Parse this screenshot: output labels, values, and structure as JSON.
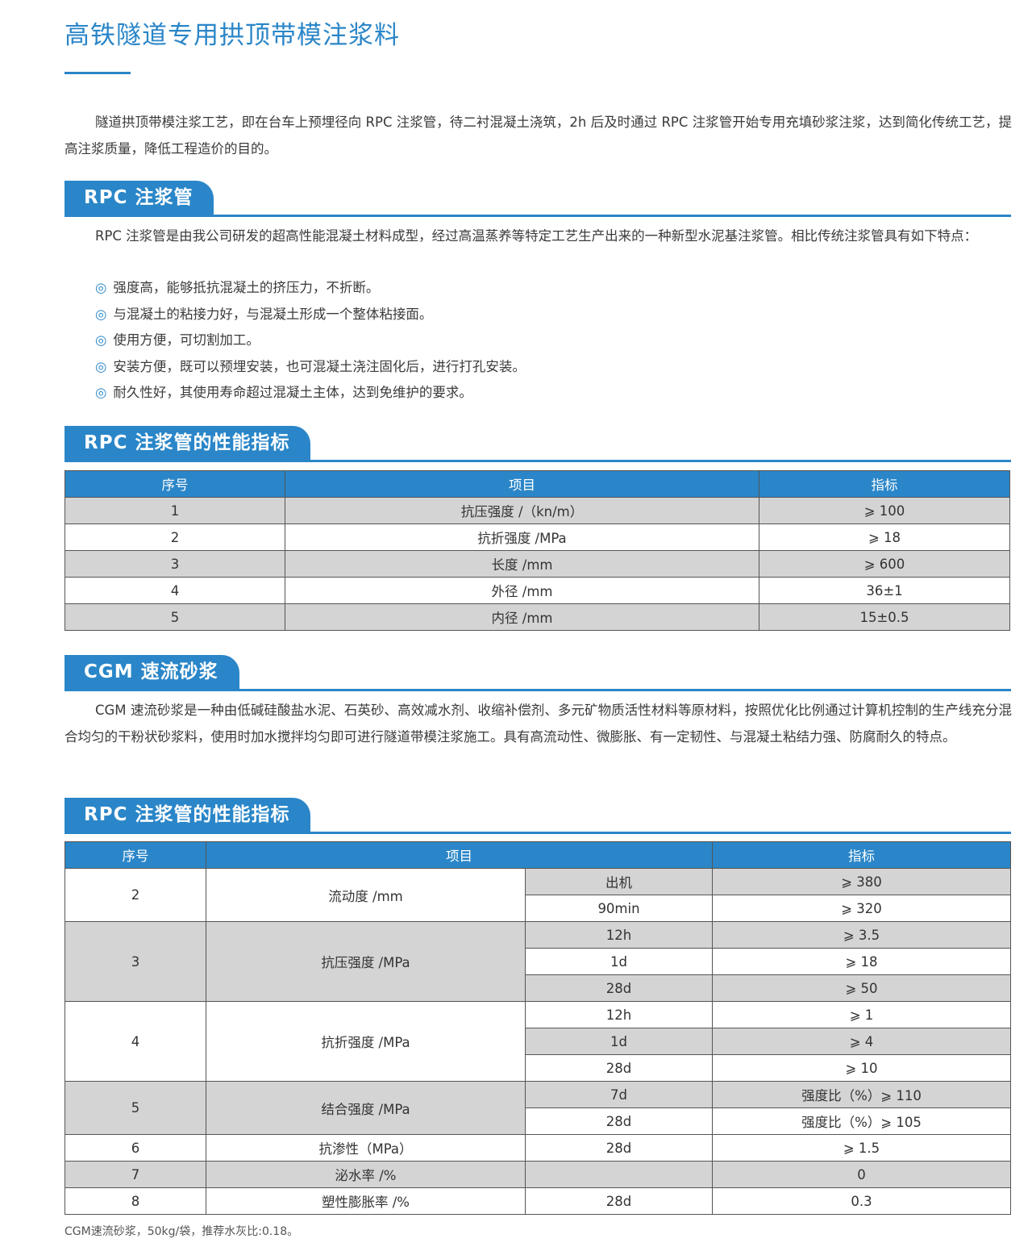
{
  "title": "高铁隧道专用拱顶带模注浆料",
  "intro": "隧道拱顶带模注浆工艺，即在台车上预埋径向 RPC 注浆管，待二衬混凝土浇筑，2h 后及时通过 RPC 注浆管开始专用充填砂浆注浆，达到简化传统工艺，提高注浆质量，降低工程造价的目的。",
  "rpc": {
    "heading": "RPC 注浆管",
    "desc": "RPC 注浆管是由我公司研发的超高性能混凝土材料成型，经过高温蒸养等特定工艺生产出来的一种新型水泥基注浆管。相比传统注浆管具有如下特点：",
    "bullet_icon": "◎",
    "features": [
      "强度高，能够抵抗混凝土的挤压力，不折断。",
      "与混凝土的粘接力好，与混凝土形成一个整体粘接面。",
      "使用方便，可切割加工。",
      "安装方便，既可以预埋安装，也可混凝土浇注固化后，进行打孔安装。",
      "耐久性好，其使用寿命超过混凝土主体，达到免维护的要求。"
    ]
  },
  "table1": {
    "heading": "RPC 注浆管的性能指标",
    "headers": [
      "序号",
      "项目",
      "指标"
    ],
    "rows": [
      [
        "1",
        "抗压强度 /（kn/m）",
        "⩾ 100"
      ],
      [
        "2",
        "抗折强度 /MPa",
        "⩾ 18"
      ],
      [
        "3",
        "长度 /mm",
        "⩾ 600"
      ],
      [
        "4",
        "外径 /mm",
        "36±1"
      ],
      [
        "5",
        "内径 /mm",
        "15±0.5"
      ]
    ]
  },
  "cgm": {
    "heading": "CGM 速流砂浆",
    "desc": "CGM 速流砂浆是一种由低碱硅酸盐水泥、石英砂、高效减水剂、收缩补偿剂、多元矿物质活性材料等原材料，按照优化比例通过计算机控制的生产线充分混合均匀的干粉状砂浆料，使用时加水搅拌均匀即可进行隧道带模注浆施工。具有高流动性、微膨胀、有一定韧性、与混凝土粘结力强、防腐耐久的特点。"
  },
  "table2": {
    "heading": "RPC 注浆管的性能指标",
    "headers": [
      "序号",
      "项目",
      "指标"
    ],
    "groups": [
      {
        "no": "2",
        "item": "流动度 /mm",
        "sub": [
          [
            "出机",
            "⩾ 380"
          ],
          [
            "90min",
            "⩾ 320"
          ]
        ]
      },
      {
        "no": "3",
        "item": "抗压强度 /MPa",
        "sub": [
          [
            "12h",
            "⩾ 3.5"
          ],
          [
            "1d",
            "⩾ 18"
          ],
          [
            "28d",
            "⩾ 50"
          ]
        ]
      },
      {
        "no": "4",
        "item": "抗折强度 /MPa",
        "sub": [
          [
            "12h",
            "⩾ 1"
          ],
          [
            "1d",
            "⩾ 4"
          ],
          [
            "28d",
            "⩾ 10"
          ]
        ]
      },
      {
        "no": "5",
        "item": "结合强度 /MPa",
        "sub": [
          [
            "7d",
            "强度比（%）⩾ 110"
          ],
          [
            "28d",
            "强度比（%）⩾ 105"
          ]
        ]
      },
      {
        "no": "6",
        "item": "抗渗性（MPa）",
        "sub": [
          [
            "28d",
            "⩾ 1.5"
          ]
        ]
      },
      {
        "no": "7",
        "item": "泌水率 /%",
        "sub": [
          [
            "",
            "0"
          ]
        ]
      },
      {
        "no": "8",
        "item": "塑性膨胀率 /%",
        "sub": [
          [
            "28d",
            "0.3"
          ]
        ]
      }
    ]
  },
  "note": "CGM速流砂浆，50kg/袋，推荐水灰比:0.18。"
}
